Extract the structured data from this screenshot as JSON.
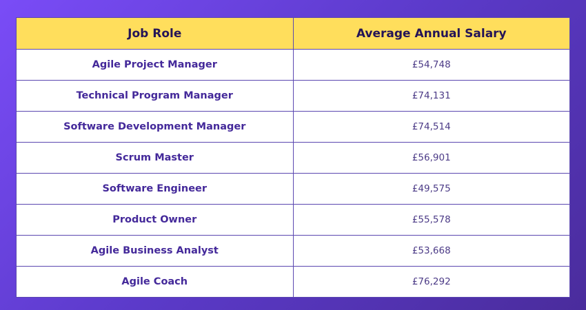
{
  "table": {
    "header": [
      "Job Role",
      "Average Annual Salary"
    ],
    "rows": [
      [
        "Agile Project Manager",
        "£54,748"
      ],
      [
        "Technical Program Manager",
        "£74,131"
      ],
      [
        "Software Development Manager",
        "£74,514"
      ],
      [
        "Scrum Master",
        "£56,901"
      ],
      [
        "Software Engineer",
        "£49,575"
      ],
      [
        "Product Owner",
        "£55,578"
      ],
      [
        "Agile Business Analyst",
        "£53,668"
      ],
      [
        "Agile Coach",
        "£76,292"
      ]
    ]
  }
}
